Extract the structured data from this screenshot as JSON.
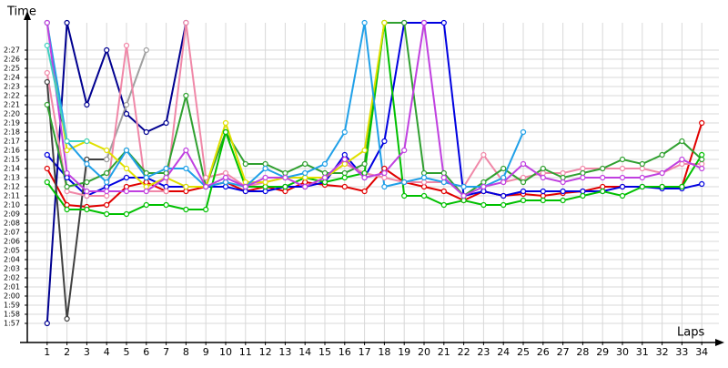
{
  "chart_data": {
    "type": "line",
    "y_label": "Time",
    "x_label": "Laps",
    "grid": true,
    "x": [
      1,
      2,
      3,
      4,
      5,
      6,
      7,
      8,
      9,
      10,
      11,
      12,
      13,
      14,
      15,
      16,
      17,
      18,
      19,
      20,
      21,
      22,
      23,
      24,
      25,
      26,
      27,
      28,
      29,
      30,
      31,
      32,
      33,
      34
    ],
    "xlim": [
      0,
      35
    ],
    "xticks": [
      1,
      2,
      3,
      4,
      5,
      6,
      7,
      8,
      9,
      10,
      11,
      12,
      13,
      14,
      15,
      16,
      17,
      18,
      19,
      20,
      21,
      22,
      23,
      24,
      25,
      26,
      27,
      28,
      29,
      30,
      31,
      32,
      33,
      34
    ],
    "ylim": [
      115,
      149
    ],
    "yticks": [
      {
        "value": 117,
        "label": "1:57"
      },
      {
        "value": 118,
        "label": "1:58"
      },
      {
        "value": 119,
        "label": "1:59"
      },
      {
        "value": 120,
        "label": "2:00"
      },
      {
        "value": 121,
        "label": "2:01"
      },
      {
        "value": 122,
        "label": "2:02"
      },
      {
        "value": 123,
        "label": "2:03"
      },
      {
        "value": 124,
        "label": "2:04"
      },
      {
        "value": 125,
        "label": "2:05"
      },
      {
        "value": 126,
        "label": "2:06"
      },
      {
        "value": 127,
        "label": "2:07"
      },
      {
        "value": 128,
        "label": "2:08"
      },
      {
        "value": 129,
        "label": "2:09"
      },
      {
        "value": 130,
        "label": "2:10"
      },
      {
        "value": 131,
        "label": "2:11"
      },
      {
        "value": 132,
        "label": "2:12"
      },
      {
        "value": 133,
        "label": "2:13"
      },
      {
        "value": 134,
        "label": "2:14"
      },
      {
        "value": 135,
        "label": "2:15"
      },
      {
        "value": 136,
        "label": "2:16"
      },
      {
        "value": 137,
        "label": "2:17"
      },
      {
        "value": 138,
        "label": "2:18"
      },
      {
        "value": 139,
        "label": "2:19"
      },
      {
        "value": 140,
        "label": "2:20"
      },
      {
        "value": 141,
        "label": "2:21"
      },
      {
        "value": 142,
        "label": "2:22"
      },
      {
        "value": 143,
        "label": "2:23"
      },
      {
        "value": 144,
        "label": "2:24"
      },
      {
        "value": 145,
        "label": "2:25"
      },
      {
        "value": 146,
        "label": "2:26"
      },
      {
        "value": 147,
        "label": "2:27"
      }
    ],
    "series": [
      {
        "color": "#e00000",
        "values": [
          134,
          130,
          129.8,
          130,
          132,
          132.5,
          131.5,
          131.5,
          132,
          132.5,
          131.5,
          132,
          131.5,
          132.5,
          132.2,
          132,
          131.5,
          134,
          132.5,
          132,
          131.5,
          130.5,
          131.5,
          131,
          131.2,
          131,
          131.3,
          131.5,
          132,
          132,
          132,
          132,
          132,
          139
        ]
      },
      {
        "color": "#0000e0",
        "values": [
          135.5,
          133,
          131,
          132,
          133,
          133,
          132,
          132,
          132,
          132,
          131.5,
          131.5,
          132,
          132,
          132.5,
          135.5,
          133,
          137,
          150,
          150,
          150,
          131,
          131.5,
          131,
          131.5,
          131.5,
          131.5,
          131.5,
          131.5,
          132,
          132,
          131.8,
          131.8,
          132.3
        ]
      },
      {
        "color": "#000090",
        "values": [
          117,
          150,
          141,
          147,
          140,
          138,
          139,
          150,
          null,
          null,
          null,
          null,
          null,
          null,
          null,
          null,
          null,
          null,
          null,
          null,
          null,
          null,
          null,
          null,
          null,
          null,
          null,
          null,
          null,
          null,
          null,
          null,
          null,
          null
        ]
      },
      {
        "color": "#404040",
        "values": [
          143.5,
          117.5,
          135,
          135,
          null,
          null,
          null,
          null,
          null,
          null,
          null,
          null,
          null,
          null,
          null,
          null,
          null,
          null,
          null,
          null,
          null,
          null,
          null,
          null,
          null,
          null,
          null,
          null,
          null,
          null,
          null,
          null,
          null,
          null
        ]
      },
      {
        "color": "#a0a0a0",
        "values": [
          null,
          null,
          null,
          135,
          141,
          147,
          null,
          null,
          null,
          null,
          null,
          null,
          null,
          null,
          null,
          null,
          null,
          null,
          null,
          null,
          null,
          null,
          null,
          null,
          null,
          null,
          null,
          null,
          null,
          null,
          null,
          null,
          null,
          null
        ]
      },
      {
        "color": "#f088a8",
        "values": [
          144.5,
          131.5,
          131,
          131,
          147.5,
          131.5,
          131.5,
          150,
          133,
          133.5,
          132,
          132.5,
          133,
          133,
          133,
          134.5,
          133.5,
          133,
          132.5,
          132.5,
          132.5,
          132,
          135.5,
          132.5,
          133,
          133.5,
          133.5,
          134,
          134,
          134,
          134,
          133.5,
          134.5,
          134.5
        ]
      },
      {
        "color": "#30a030",
        "values": [
          141,
          132,
          132.5,
          133.5,
          136,
          133.5,
          133.5,
          142,
          132,
          138,
          134.5,
          134.5,
          133.5,
          134.5,
          133.5,
          133.5,
          134.5,
          150,
          150,
          133.5,
          133.5,
          131,
          132.5,
          134,
          132.5,
          134,
          133,
          133.5,
          134,
          135,
          134.5,
          135.5,
          137,
          135
        ]
      },
      {
        "color": "#00c000",
        "values": [
          132.5,
          129.5,
          129.5,
          129,
          129,
          130,
          130,
          129.5,
          129.5,
          138,
          132,
          132,
          132,
          133,
          132.5,
          133,
          133.5,
          150,
          131,
          131,
          130,
          130.5,
          130,
          130,
          130.5,
          130.5,
          130.5,
          131,
          131.5,
          131,
          132,
          132,
          132,
          135.5
        ]
      },
      {
        "color": "#e0e000",
        "values": [
          150,
          136,
          137,
          136,
          134,
          132,
          133,
          132,
          132,
          139,
          132.5,
          132.5,
          133,
          133,
          133,
          134.5,
          136,
          150,
          null,
          null,
          null,
          null,
          null,
          null,
          null,
          null,
          null,
          null,
          null,
          null,
          null,
          null,
          null,
          null
        ]
      },
      {
        "color": "#20a0e8",
        "values": [
          150,
          137,
          134.5,
          132.5,
          136,
          133,
          134,
          134,
          132,
          132.5,
          132,
          134,
          133,
          133.5,
          134.5,
          138,
          150,
          132,
          132.5,
          133,
          132.5,
          132,
          132,
          133,
          138,
          null,
          null,
          null,
          null,
          null,
          null,
          null,
          null,
          null
        ]
      },
      {
        "color": "#c040e0",
        "values": [
          150,
          133.5,
          131.5,
          131.5,
          131.5,
          131.5,
          133,
          136,
          132,
          133,
          132,
          133,
          133,
          132,
          133,
          135,
          133,
          133.5,
          136,
          150,
          133,
          131,
          132,
          132.5,
          134.5,
          133,
          132.5,
          133,
          133,
          133,
          133,
          133.5,
          135,
          134
        ]
      },
      {
        "color": "#40d0c0",
        "values": [
          147.5,
          137,
          137,
          null,
          null,
          null,
          null,
          null,
          null,
          null,
          null,
          null,
          null,
          null,
          null,
          null,
          null,
          null,
          null,
          null,
          null,
          null,
          null,
          null,
          null,
          null,
          null,
          null,
          null,
          null,
          null,
          null,
          null,
          null
        ]
      }
    ]
  }
}
